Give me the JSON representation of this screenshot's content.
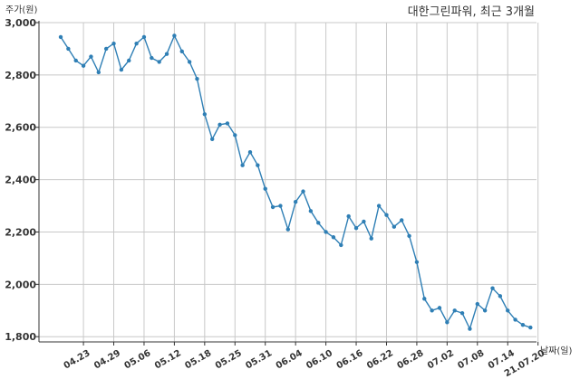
{
  "chart_data": {
    "type": "line",
    "title": "대한그린파워, 최근 3개월",
    "ylabel": "주가(원)",
    "xlabel": "날짜(일)",
    "ylim": [
      1780,
      3000
    ],
    "yticks": [
      1800,
      2000,
      2200,
      2400,
      2600,
      2800,
      3000
    ],
    "ytick_labels": [
      "1,800",
      "2,000",
      "2,200",
      "2,400",
      "2,600",
      "2,800",
      "3,000"
    ],
    "xtick_labels": [
      "04.23",
      "04.29",
      "05.06",
      "05.12",
      "05.18",
      "05.25",
      "05.31",
      "06.04",
      "06.10",
      "06.16",
      "06.22",
      "06.28",
      "07.02",
      "07.08",
      "07.14",
      "21.07.20"
    ],
    "grid": true,
    "color": "#2f7fb5",
    "series": [
      {
        "values": [
          2945,
          2900,
          2855,
          2835,
          2870,
          2810,
          2900,
          2920,
          2820,
          2855,
          2920,
          2945,
          2865,
          2850,
          2880,
          2950,
          2890,
          2850,
          2785,
          2650,
          2555,
          2610,
          2615,
          2570,
          2455,
          2505,
          2455,
          2365,
          2295,
          2300,
          2210,
          2315,
          2355,
          2280,
          2235,
          2200,
          2180,
          2150,
          2260,
          2215,
          2240,
          2175,
          2300,
          2265,
          2220,
          2245,
          2185,
          2085,
          1945,
          1900,
          1910,
          1855,
          1900,
          1890,
          1830,
          1925,
          1900,
          1985,
          1955,
          1900,
          1865,
          1845,
          1835
        ]
      }
    ]
  }
}
